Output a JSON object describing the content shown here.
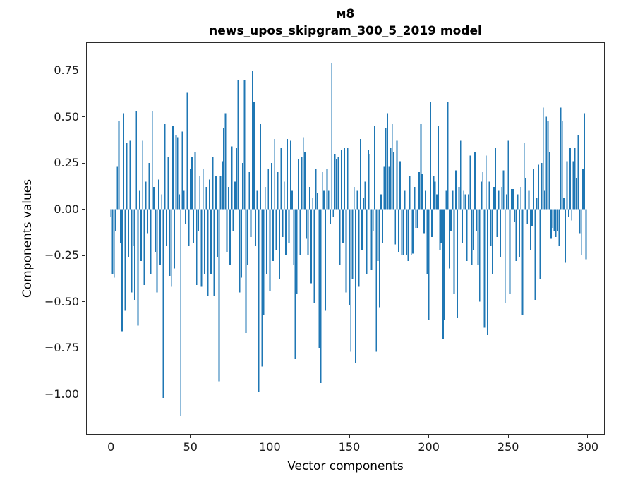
{
  "figure": {
    "title_line1": "м8",
    "title_line2": "news_upos_skipgram_300_5_2019 model",
    "xlabel": "Vector components",
    "ylabel": "Components values"
  },
  "chart_data": {
    "type": "bar",
    "title": "м8",
    "subtitle": "news_upos_skipgram_300_5_2019 model",
    "xlabel": "Vector components",
    "ylabel": "Components values",
    "bar_color": "#1f77b4",
    "axis_color": "#2b2b2b",
    "grid": false,
    "n_components": 300,
    "x_start": 0,
    "xlim": [
      -15.2,
      310.3
    ],
    "ylim": [
      -1.215,
      0.899
    ],
    "x_ticks": [
      0,
      50,
      100,
      150,
      200,
      250,
      300
    ],
    "x_tick_labels": [
      "0",
      "50",
      "100",
      "150",
      "200",
      "250",
      "300"
    ],
    "y_ticks": [
      0.75,
      0.5,
      0.25,
      0,
      -0.25,
      -0.5,
      -0.75,
      -1.0
    ],
    "y_tick_labels": [
      "0.75",
      "0.50",
      "0.25",
      "0.00",
      "−0.25",
      "−0.50",
      "−0.75",
      "−1.00"
    ],
    "values": [
      -0.04,
      -0.35,
      -0.37,
      -0.12,
      0.23,
      0.48,
      -0.18,
      -0.66,
      0.52,
      -0.55,
      0.36,
      -0.26,
      0.37,
      -0.45,
      -0.2,
      -0.49,
      0.53,
      -0.63,
      0.1,
      -0.28,
      0.37,
      -0.41,
      0.15,
      -0.13,
      0.25,
      -0.35,
      0.53,
      0.12,
      -0.23,
      -0.45,
      0.16,
      -0.3,
      0.08,
      -1.02,
      0.46,
      -0.2,
      0.28,
      -0.36,
      -0.42,
      0.45,
      -0.32,
      0.4,
      0.39,
      0.08,
      -1.12,
      0.42,
      0.1,
      -0.08,
      0.63,
      -0.2,
      0.22,
      0.28,
      -0.18,
      0.31,
      -0.41,
      -0.12,
      0.18,
      -0.42,
      0.22,
      -0.35,
      0.12,
      -0.47,
      0.16,
      -0.35,
      0.28,
      -0.47,
      0.18,
      -0.26,
      -0.93,
      0.18,
      0.26,
      0.44,
      0.52,
      -0.23,
      0.12,
      -0.3,
      0.34,
      -0.12,
      0.15,
      0.33,
      0.7,
      -0.45,
      -0.37,
      0.25,
      0.7,
      -0.67,
      -0.3,
      0.2,
      -0.15,
      0.75,
      0.58,
      -0.2,
      0.1,
      -0.99,
      0.46,
      -0.85,
      -0.57,
      0.12,
      -0.35,
      0.22,
      -0.44,
      0.25,
      -0.28,
      0.38,
      -0.22,
      0.2,
      -0.38,
      0.33,
      -0.15,
      0.15,
      -0.25,
      0.38,
      -0.18,
      0.37,
      0.1,
      -0.3,
      -0.81,
      -0.46,
      0.27,
      -0.25,
      0.28,
      0.39,
      0.31,
      -0.16,
      -0.25,
      0.12,
      -0.4,
      0.06,
      -0.51,
      0.22,
      0.09,
      -0.75,
      -0.94,
      0.2,
      0.1,
      -0.55,
      0.22,
      0.1,
      -0.08,
      0.79,
      -0.04,
      0.3,
      0.27,
      0.28,
      -0.3,
      0.32,
      -0.18,
      0.33,
      -0.45,
      0.33,
      -0.52,
      -0.77,
      -0.38,
      0.12,
      -0.83,
      0.1,
      -0.42,
      0.38,
      -0.22,
      0.06,
      0.15,
      -0.35,
      0.32,
      0.3,
      -0.33,
      -0.12,
      0.45,
      -0.77,
      -0.28,
      -0.53,
      0.08,
      -0.18,
      0.23,
      0.44,
      0.52,
      0.23,
      0.33,
      0.46,
      0.31,
      -0.19,
      0.37,
      -0.23,
      0.26,
      -0.25,
      -0.25,
      0.1,
      -0.25,
      -0.28,
      0.18,
      -0.25,
      -0.24,
      0.12,
      -0.1,
      -0.1,
      0.2,
      0.46,
      0.19,
      -0.13,
      0.1,
      -0.35,
      -0.6,
      0.58,
      -0.15,
      0.18,
      0.15,
      0.08,
      0.45,
      -0.22,
      -0.18,
      -0.7,
      -0.6,
      0.1,
      0.58,
      -0.32,
      -0.12,
      0.1,
      -0.46,
      0.21,
      -0.59,
      0.12,
      0.37,
      -0.18,
      0.1,
      0.08,
      -0.28,
      0.08,
      0.29,
      -0.3,
      -0.22,
      0.31,
      -0.12,
      -0.3,
      -0.5,
      0.15,
      0.2,
      -0.64,
      0.29,
      -0.68,
      0.15,
      -0.2,
      -0.35,
      0.12,
      0.33,
      -0.15,
      0.1,
      -0.26,
      0.12,
      0.21,
      -0.51,
      0.08,
      0.37,
      -0.46,
      0.11,
      0.11,
      -0.07,
      -0.28,
      0.08,
      -0.26,
      0.12,
      -0.57,
      0.36,
      0.17,
      -0.08,
      0.1,
      -0.22,
      -0.09,
      0.22,
      -0.49,
      0.06,
      0.24,
      -0.38,
      0.25,
      0.55,
      0.1,
      0.5,
      0.48,
      0.31,
      -0.16,
      -0.1,
      -0.12,
      -0.15,
      -0.12,
      -0.2,
      0.55,
      0.48,
      0.06,
      -0.29,
      0.26,
      -0.04,
      0.33,
      -0.06,
      0.26,
      0.33,
      0.17,
      0.4,
      -0.13,
      -0.25,
      0.22,
      0.52,
      -0.27
    ]
  }
}
